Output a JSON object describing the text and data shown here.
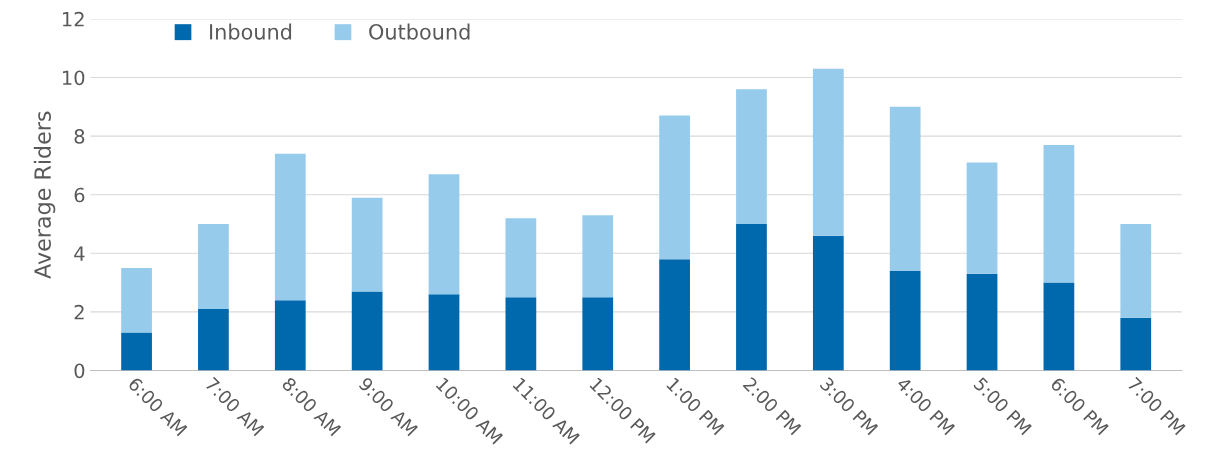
{
  "chart_data": {
    "type": "bar",
    "stacked": true,
    "ylabel": "Average Riders",
    "categories": [
      "6:00 AM",
      "7:00 AM",
      "8:00 AM",
      "9:00 AM",
      "10:00 AM",
      "11:00 AM",
      "12:00 PM",
      "1:00 PM",
      "2:00 PM",
      "3:00 PM",
      "4:00 PM",
      "5:00 PM",
      "6:00 PM",
      "7:00 PM"
    ],
    "series": [
      {
        "name": "Inbound",
        "color": "#0068ac",
        "values": [
          1.3,
          2.1,
          2.4,
          2.7,
          2.6,
          2.5,
          2.5,
          3.8,
          5.0,
          4.6,
          3.4,
          3.3,
          3.0,
          1.8
        ]
      },
      {
        "name": "Outbound",
        "color": "#97cbec",
        "values": [
          2.2,
          2.9,
          5.0,
          3.2,
          4.1,
          2.7,
          2.8,
          4.9,
          4.6,
          5.7,
          5.6,
          3.8,
          4.7,
          3.2
        ]
      }
    ],
    "ylim": [
      0,
      12
    ],
    "yticks": [
      0,
      2,
      4,
      6,
      8,
      10,
      12
    ],
    "grid": "y",
    "legend": "top left"
  }
}
